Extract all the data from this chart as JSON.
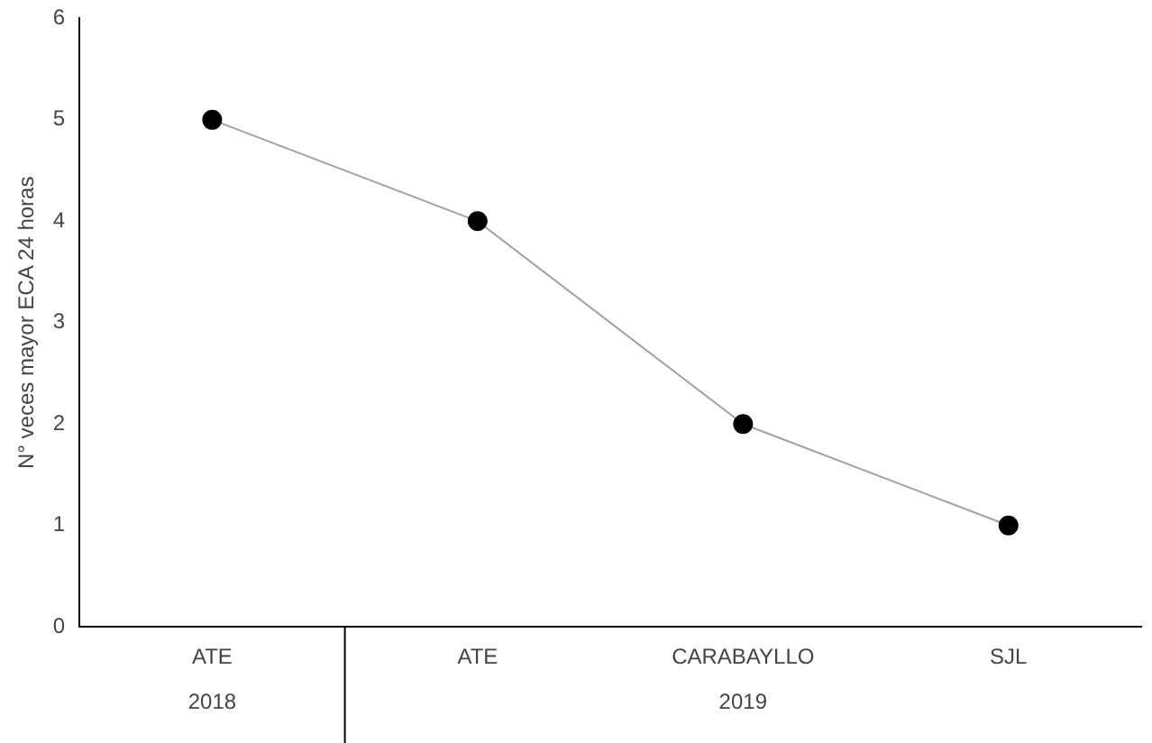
{
  "chart_data": {
    "type": "line",
    "ylabel": "N° veces mayor ECA 24 horas",
    "categories": [
      "ATE",
      "ATE",
      "CARABAYLLO",
      "SJL"
    ],
    "series": [
      {
        "color": "#000000",
        "values": [
          5,
          4,
          2,
          1
        ]
      }
    ],
    "ylim": [
      0,
      6
    ],
    "yticks": [
      0,
      1,
      2,
      3,
      4,
      5,
      6
    ],
    "grid": false,
    "legend": false,
    "marker": "circle",
    "line_style": "solid",
    "annotations": [
      "2018",
      "2019"
    ]
  }
}
